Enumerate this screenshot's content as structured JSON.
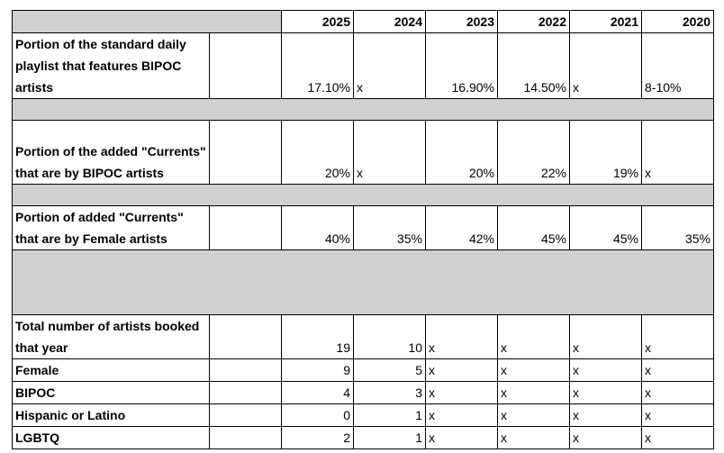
{
  "colors": {
    "separator": "#d0d0d0",
    "border": "#000000"
  },
  "header": {
    "years": [
      "2025",
      "2024",
      "2023",
      "2022",
      "2021",
      "2020"
    ]
  },
  "rows": [
    {
      "label": "Portion of the standard daily playlist that features BIPOC artists",
      "cells": [
        {
          "v": "17.10%",
          "a": "r"
        },
        {
          "v": "x",
          "a": "l"
        },
        {
          "v": "16.90%",
          "a": "r"
        },
        {
          "v": "14.50%",
          "a": "r"
        },
        {
          "v": "x",
          "a": "l"
        },
        {
          "v": "8-10%",
          "a": "l"
        }
      ]
    },
    {
      "separator": true
    },
    {
      "label": "Portion of the added \"Currents\" that are by BIPOC artists",
      "cells": [
        {
          "v": "20%",
          "a": "r"
        },
        {
          "v": "x",
          "a": "l"
        },
        {
          "v": "20%",
          "a": "r"
        },
        {
          "v": "22%",
          "a": "r"
        },
        {
          "v": "19%",
          "a": "r"
        },
        {
          "v": "x",
          "a": "l"
        }
      ]
    },
    {
      "separator": true
    },
    {
      "label": "Portion of added \"Currents\" that are by Female artists",
      "cells": [
        {
          "v": "40%",
          "a": "r"
        },
        {
          "v": "35%",
          "a": "r"
        },
        {
          "v": "42%",
          "a": "r"
        },
        {
          "v": "45%",
          "a": "r"
        },
        {
          "v": "45%",
          "a": "r"
        },
        {
          "v": "35%",
          "a": "r"
        }
      ]
    },
    {
      "separator": true,
      "tall": true
    },
    {
      "label": "Total number of artists booked that year",
      "cells": [
        {
          "v": "19",
          "a": "r"
        },
        {
          "v": "10",
          "a": "r"
        },
        {
          "v": "x",
          "a": "l"
        },
        {
          "v": "x",
          "a": "l"
        },
        {
          "v": "x",
          "a": "l"
        },
        {
          "v": "x",
          "a": "l"
        }
      ]
    },
    {
      "label": "Female",
      "cells": [
        {
          "v": "9",
          "a": "r"
        },
        {
          "v": "5",
          "a": "r"
        },
        {
          "v": "x",
          "a": "l"
        },
        {
          "v": "x",
          "a": "l"
        },
        {
          "v": "x",
          "a": "l"
        },
        {
          "v": "x",
          "a": "l"
        }
      ]
    },
    {
      "label": "BIPOC",
      "cells": [
        {
          "v": "4",
          "a": "r"
        },
        {
          "v": "3",
          "a": "r"
        },
        {
          "v": "x",
          "a": "l"
        },
        {
          "v": "x",
          "a": "l"
        },
        {
          "v": "x",
          "a": "l"
        },
        {
          "v": "x",
          "a": "l"
        }
      ]
    },
    {
      "label": "Hispanic or Latino",
      "cells": [
        {
          "v": "0",
          "a": "r"
        },
        {
          "v": "1",
          "a": "r"
        },
        {
          "v": "x",
          "a": "l"
        },
        {
          "v": "x",
          "a": "l"
        },
        {
          "v": "x",
          "a": "l"
        },
        {
          "v": "x",
          "a": "l"
        }
      ]
    },
    {
      "label": "LGBTQ",
      "cells": [
        {
          "v": "2",
          "a": "r"
        },
        {
          "v": "1",
          "a": "r"
        },
        {
          "v": "x",
          "a": "l"
        },
        {
          "v": "x",
          "a": "l"
        },
        {
          "v": "x",
          "a": "l"
        },
        {
          "v": "x",
          "a": "l"
        }
      ]
    }
  ]
}
